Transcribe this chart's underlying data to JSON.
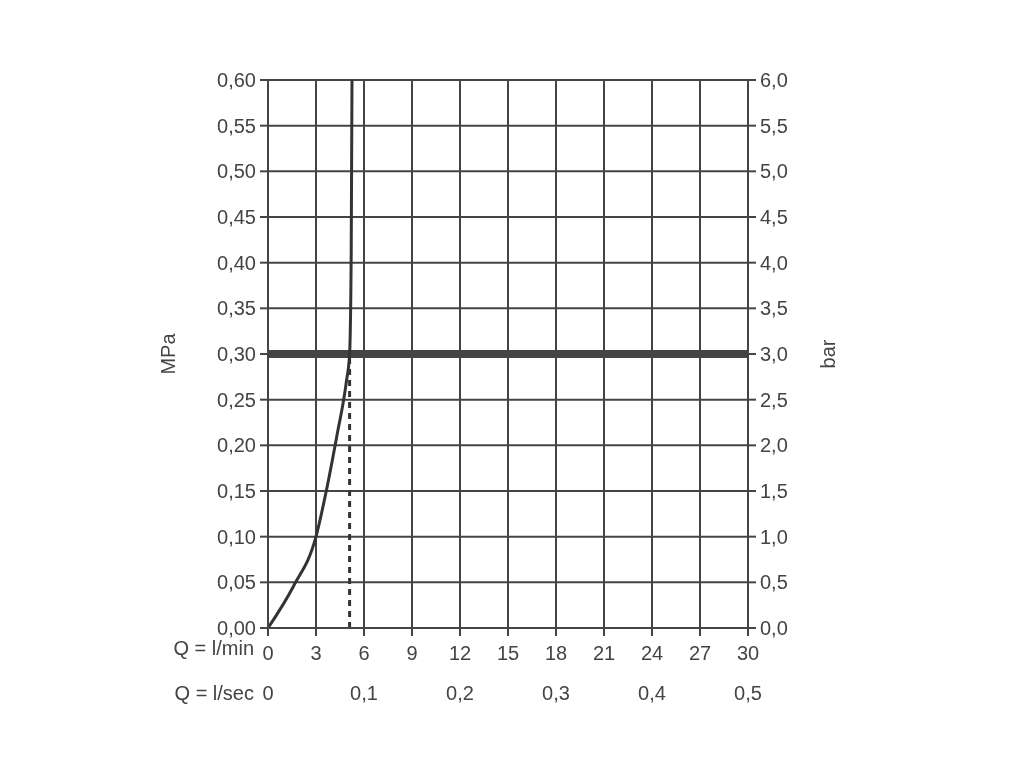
{
  "chart_data": {
    "type": "line",
    "xlabel": "Q = l/min",
    "x2label": "Q = l/sec",
    "ylabel": "MPa",
    "y2label": "bar",
    "xlim": [
      0,
      30
    ],
    "xticks": [
      0,
      3,
      6,
      9,
      12,
      15,
      18,
      21,
      24,
      27,
      30
    ],
    "x2lim": [
      0,
      0.5
    ],
    "x2ticks": [
      {
        "value": 0,
        "label": "0"
      },
      {
        "value": 0.1,
        "label": "0,1"
      },
      {
        "value": 0.2,
        "label": "0,2"
      },
      {
        "value": 0.3,
        "label": "0,3"
      },
      {
        "value": 0.4,
        "label": "0,4"
      },
      {
        "value": 0.5,
        "label": "0,5"
      }
    ],
    "ylim": [
      0,
      0.6
    ],
    "yticks": [
      {
        "value": 0,
        "label": "0,00"
      },
      {
        "value": 0.05,
        "label": "0,05"
      },
      {
        "value": 0.1,
        "label": "0,10"
      },
      {
        "value": 0.15,
        "label": "0,15"
      },
      {
        "value": 0.2,
        "label": "0,20"
      },
      {
        "value": 0.25,
        "label": "0,25"
      },
      {
        "value": 0.3,
        "label": "0,30"
      },
      {
        "value": 0.35,
        "label": "0,35"
      },
      {
        "value": 0.4,
        "label": "0,40"
      },
      {
        "value": 0.45,
        "label": "0,45"
      },
      {
        "value": 0.5,
        "label": "0,50"
      },
      {
        "value": 0.55,
        "label": "0,55"
      },
      {
        "value": 0.6,
        "label": "0,60"
      }
    ],
    "y2lim": [
      0,
      6
    ],
    "y2ticks": [
      {
        "value": 0,
        "label": "0,0"
      },
      {
        "value": 0.5,
        "label": "0,5"
      },
      {
        "value": 1,
        "label": "1,0"
      },
      {
        "value": 1.5,
        "label": "1,5"
      },
      {
        "value": 2,
        "label": "2,0"
      },
      {
        "value": 2.5,
        "label": "2,5"
      },
      {
        "value": 3,
        "label": "3,0"
      },
      {
        "value": 3.5,
        "label": "3,5"
      },
      {
        "value": 4,
        "label": "4,0"
      },
      {
        "value": 4.5,
        "label": "4,5"
      },
      {
        "value": 5,
        "label": "5,0"
      },
      {
        "value": 5.5,
        "label": "5,5"
      },
      {
        "value": 6,
        "label": "6,0"
      }
    ],
    "series": [
      {
        "color": "#333333",
        "x": [
          0,
          1.6,
          3,
          3.7,
          4.3,
          4.9,
          5.1,
          5.2,
          5.25
        ],
        "values": [
          0,
          0.046,
          0.1,
          0.155,
          0.21,
          0.27,
          0.3,
          0.41,
          0.6
        ]
      },
      {
        "color": "#333333",
        "line_style": "dashed",
        "x": [
          5.1,
          5.1
        ],
        "values": [
          0,
          0.3
        ]
      }
    ],
    "ref_lines": [
      {
        "axis": "y",
        "value": 0.3,
        "color": "#444444"
      }
    ],
    "grid": true,
    "legend": false,
    "marker": "none",
    "line_style": "solid"
  }
}
